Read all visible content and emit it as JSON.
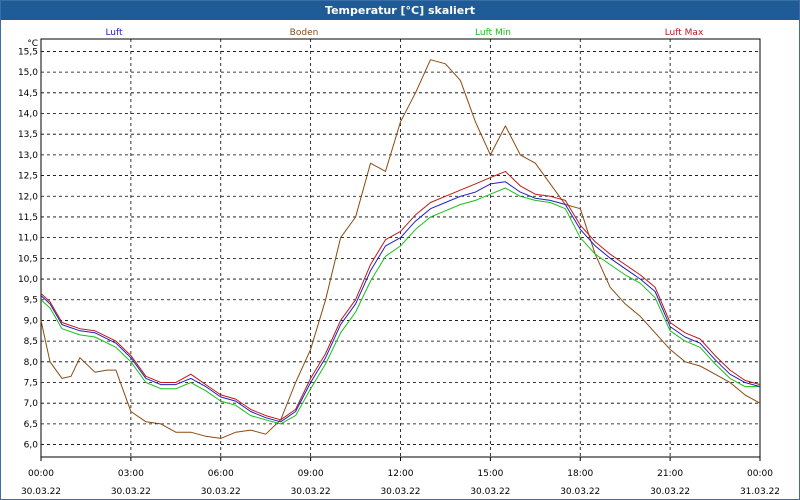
{
  "window": {
    "title": "Temperatur [°C] skaliert"
  },
  "colors": {
    "titlebar": "#1f5b96",
    "luft": "#2020c0",
    "boden": "#8b4a0f",
    "luft_min": "#18c018",
    "luft_max": "#c01818"
  },
  "chart_data": {
    "type": "line",
    "title": "Temperatur [°C] skaliert",
    "ylabel": "°C",
    "ylim": [
      5.7,
      15.8
    ],
    "yticks": [
      "6,0",
      "6,5",
      "7,0",
      "7,5",
      "8,0",
      "8,5",
      "9,0",
      "9,5",
      "10,0",
      "10,5",
      "11,0",
      "11,5",
      "12,0",
      "12,5",
      "13,0",
      "13,5",
      "14,0",
      "14,5",
      "15,0",
      "15,5"
    ],
    "xlim": [
      0,
      24
    ],
    "xticks": [
      {
        "time": "00:00",
        "date": "30.03.22"
      },
      {
        "time": "03:00",
        "date": "30.03.22"
      },
      {
        "time": "06:00",
        "date": "30.03.22"
      },
      {
        "time": "09:00",
        "date": "30.03.22"
      },
      {
        "time": "12:00",
        "date": "30.03.22"
      },
      {
        "time": "15:00",
        "date": "30.03.22"
      },
      {
        "time": "18:00",
        "date": "30.03.22"
      },
      {
        "time": "21:00",
        "date": "30.03.22"
      },
      {
        "time": "00:00",
        "date": "31.03.22"
      }
    ],
    "grid": true,
    "series": [
      {
        "name": "Luft",
        "color": "#2020c0",
        "x": [
          0,
          0.3,
          0.7,
          1.3,
          1.8,
          2.5,
          3.0,
          3.5,
          4.0,
          4.5,
          5.0,
          5.5,
          6.0,
          6.5,
          7.0,
          7.5,
          8.0,
          8.5,
          9.0,
          9.5,
          10.0,
          10.5,
          11.0,
          11.5,
          12.0,
          12.5,
          13.0,
          13.5,
          14.0,
          14.5,
          15.0,
          15.5,
          16.0,
          16.5,
          17.0,
          17.5,
          18.0,
          18.5,
          19.0,
          19.5,
          20.0,
          20.5,
          21.0,
          21.5,
          22.0,
          22.5,
          23.0,
          23.5,
          24.0
        ],
        "y": [
          9.6,
          9.4,
          8.9,
          8.75,
          8.7,
          8.45,
          8.1,
          7.6,
          7.45,
          7.45,
          7.6,
          7.4,
          7.15,
          7.05,
          6.8,
          6.65,
          6.55,
          6.8,
          7.5,
          8.1,
          8.9,
          9.4,
          10.2,
          10.8,
          11.0,
          11.4,
          11.7,
          11.85,
          12.0,
          12.1,
          12.3,
          12.35,
          12.1,
          11.95,
          11.9,
          11.8,
          11.2,
          10.8,
          10.5,
          10.25,
          10.0,
          9.7,
          8.85,
          8.6,
          8.45,
          8.05,
          7.7,
          7.5,
          7.4
        ]
      },
      {
        "name": "Boden",
        "color": "#8b4a0f",
        "x": [
          0,
          0.3,
          0.7,
          1.0,
          1.3,
          1.8,
          2.2,
          2.5,
          3.0,
          3.5,
          4.0,
          4.5,
          5.0,
          5.5,
          6.0,
          6.5,
          7.0,
          7.5,
          8.0,
          8.5,
          9.0,
          9.5,
          10.0,
          10.5,
          11.0,
          11.5,
          12.0,
          12.5,
          13.0,
          13.5,
          14.0,
          14.5,
          15.0,
          15.5,
          16.0,
          16.5,
          17.0,
          17.5,
          18.0,
          18.5,
          19.0,
          19.5,
          20.0,
          20.5,
          21.0,
          21.5,
          22.0,
          22.5,
          23.0,
          23.5,
          24.0
        ],
        "y": [
          9.0,
          8.0,
          7.6,
          7.65,
          8.1,
          7.75,
          7.8,
          7.8,
          6.8,
          6.55,
          6.5,
          6.3,
          6.3,
          6.2,
          6.15,
          6.3,
          6.35,
          6.25,
          6.6,
          7.5,
          8.3,
          9.5,
          11.0,
          11.5,
          12.8,
          12.6,
          13.8,
          14.5,
          15.3,
          15.2,
          14.8,
          13.8,
          13.0,
          13.7,
          13.0,
          12.8,
          12.3,
          11.8,
          11.7,
          10.6,
          9.8,
          9.4,
          9.1,
          8.7,
          8.3,
          8.0,
          7.9,
          7.7,
          7.5,
          7.2,
          7.0
        ]
      },
      {
        "name": "Luft Min",
        "color": "#18c018",
        "x": [
          0,
          0.3,
          0.7,
          1.3,
          1.8,
          2.5,
          3.0,
          3.5,
          4.0,
          4.5,
          5.0,
          5.5,
          6.0,
          6.5,
          7.0,
          7.5,
          8.0,
          8.5,
          9.0,
          9.5,
          10.0,
          10.5,
          11.0,
          11.5,
          12.0,
          12.5,
          13.0,
          13.5,
          14.0,
          14.5,
          15.0,
          15.5,
          16.0,
          16.5,
          17.0,
          17.5,
          18.0,
          18.5,
          19.0,
          19.5,
          20.0,
          20.5,
          21.0,
          21.5,
          22.0,
          22.5,
          23.0,
          23.5,
          24.0
        ],
        "y": [
          9.5,
          9.3,
          8.8,
          8.65,
          8.6,
          8.35,
          8.0,
          7.5,
          7.35,
          7.35,
          7.5,
          7.3,
          7.05,
          6.95,
          6.7,
          6.6,
          6.5,
          6.7,
          7.35,
          7.95,
          8.7,
          9.2,
          9.95,
          10.55,
          10.8,
          11.2,
          11.5,
          11.65,
          11.8,
          11.9,
          12.05,
          12.2,
          12.0,
          11.9,
          11.85,
          11.7,
          11.0,
          10.6,
          10.35,
          10.1,
          9.9,
          9.55,
          8.75,
          8.5,
          8.35,
          7.95,
          7.6,
          7.4,
          7.4
        ]
      },
      {
        "name": "Luft Max",
        "color": "#c01818",
        "x": [
          0,
          0.3,
          0.7,
          1.3,
          1.8,
          2.5,
          3.0,
          3.5,
          4.0,
          4.5,
          5.0,
          5.5,
          6.0,
          6.5,
          7.0,
          7.5,
          8.0,
          8.5,
          9.0,
          9.5,
          10.0,
          10.5,
          11.0,
          11.5,
          12.0,
          12.5,
          13.0,
          13.5,
          14.0,
          14.5,
          15.0,
          15.5,
          16.0,
          16.5,
          17.0,
          17.5,
          18.0,
          18.5,
          19.0,
          19.5,
          20.0,
          20.5,
          21.0,
          21.5,
          22.0,
          22.5,
          23.0,
          23.5,
          24.0
        ],
        "y": [
          9.65,
          9.45,
          8.95,
          8.8,
          8.75,
          8.5,
          8.15,
          7.65,
          7.5,
          7.5,
          7.7,
          7.45,
          7.2,
          7.1,
          6.85,
          6.7,
          6.6,
          6.85,
          7.6,
          8.2,
          9.0,
          9.5,
          10.35,
          10.95,
          11.15,
          11.55,
          11.85,
          12.0,
          12.15,
          12.3,
          12.45,
          12.6,
          12.25,
          12.05,
          12.0,
          11.9,
          11.3,
          10.9,
          10.6,
          10.35,
          10.1,
          9.8,
          8.95,
          8.7,
          8.55,
          8.15,
          7.8,
          7.55,
          7.45
        ]
      }
    ]
  }
}
